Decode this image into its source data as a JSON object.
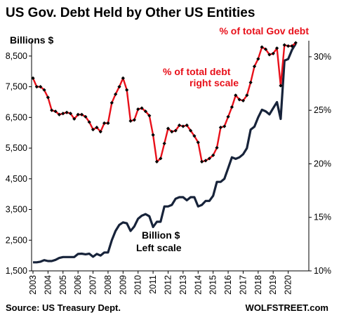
{
  "chart_data": {
    "type": "line",
    "title": "US Gov. Debt Held by Other US Entities",
    "left_axis": {
      "label": "Billions $",
      "ylim": [
        1500,
        9000
      ],
      "ticks": [
        1500,
        2500,
        3500,
        4500,
        5500,
        6500,
        7500,
        8500
      ],
      "tick_labels": [
        "1,500",
        "2,500",
        "3,500",
        "4,500",
        "5,500",
        "6,500",
        "7,500",
        "8,500"
      ]
    },
    "right_axis": {
      "label": "% of total Gov debt",
      "ylim": [
        10,
        31.5
      ],
      "ticks": [
        10,
        15,
        20,
        25,
        30
      ],
      "tick_labels": [
        "10%",
        "15%",
        "20%",
        "25%",
        "30%"
      ]
    },
    "x_axis": {
      "xlim": [
        2003.0,
        2021.0
      ],
      "tick_years": [
        2003,
        2004,
        2005,
        2006,
        2007,
        2008,
        2009,
        2010,
        2011,
        2012,
        2013,
        2014,
        2015,
        2016,
        2017,
        2018,
        2019,
        2020
      ],
      "tick_labels": [
        "2003",
        "2004",
        "2005",
        "2006",
        "2007",
        "2008",
        "2009",
        "2010",
        "2011",
        "2012",
        "2013",
        "2014",
        "2015",
        "2016",
        "2017",
        "2018",
        "2019",
        "2020"
      ]
    },
    "colors": {
      "billions": "#17233a",
      "percent": "#e8101a",
      "marker": "#000000"
    },
    "series": [
      {
        "name": "Billion $",
        "axis": "left",
        "points": [
          [
            2003.0,
            1780
          ],
          [
            2003.25,
            1780
          ],
          [
            2003.5,
            1800
          ],
          [
            2003.75,
            1850
          ],
          [
            2004.0,
            1820
          ],
          [
            2004.25,
            1820
          ],
          [
            2004.5,
            1860
          ],
          [
            2004.75,
            1920
          ],
          [
            2005.0,
            1950
          ],
          [
            2005.25,
            1950
          ],
          [
            2005.5,
            1950
          ],
          [
            2005.75,
            1950
          ],
          [
            2006.0,
            2050
          ],
          [
            2006.25,
            2060
          ],
          [
            2006.5,
            2040
          ],
          [
            2006.75,
            2060
          ],
          [
            2007.0,
            1960
          ],
          [
            2007.25,
            2050
          ],
          [
            2007.5,
            2000
          ],
          [
            2007.75,
            2100
          ],
          [
            2008.0,
            2100
          ],
          [
            2008.25,
            2500
          ],
          [
            2008.5,
            2800
          ],
          [
            2008.75,
            3000
          ],
          [
            2009.0,
            3080
          ],
          [
            2009.25,
            3050
          ],
          [
            2009.5,
            2800
          ],
          [
            2009.75,
            2950
          ],
          [
            2010.0,
            3200
          ],
          [
            2010.25,
            3300
          ],
          [
            2010.5,
            3350
          ],
          [
            2010.75,
            3280
          ],
          [
            2011.0,
            2930
          ],
          [
            2011.25,
            3100
          ],
          [
            2011.5,
            3100
          ],
          [
            2011.75,
            3600
          ],
          [
            2012.0,
            3600
          ],
          [
            2012.25,
            3650
          ],
          [
            2012.5,
            3850
          ],
          [
            2012.75,
            3900
          ],
          [
            2013.0,
            3900
          ],
          [
            2013.25,
            3800
          ],
          [
            2013.5,
            3900
          ],
          [
            2013.75,
            3900
          ],
          [
            2014.0,
            3600
          ],
          [
            2014.25,
            3650
          ],
          [
            2014.5,
            3780
          ],
          [
            2014.75,
            3780
          ],
          [
            2015.0,
            3950
          ],
          [
            2015.25,
            4400
          ],
          [
            2015.5,
            4400
          ],
          [
            2015.75,
            4500
          ],
          [
            2016.0,
            4850
          ],
          [
            2016.25,
            5200
          ],
          [
            2016.5,
            5150
          ],
          [
            2016.75,
            5200
          ],
          [
            2017.0,
            5300
          ],
          [
            2017.25,
            5500
          ],
          [
            2017.5,
            6100
          ],
          [
            2017.75,
            6200
          ],
          [
            2018.0,
            6500
          ],
          [
            2018.25,
            6750
          ],
          [
            2018.5,
            6700
          ],
          [
            2018.75,
            6600
          ],
          [
            2019.0,
            6800
          ],
          [
            2019.25,
            7000
          ],
          [
            2019.5,
            6450
          ],
          [
            2019.75,
            8350
          ],
          [
            2020.0,
            8400
          ],
          [
            2020.25,
            8700
          ],
          [
            2020.5,
            8900
          ]
        ]
      },
      {
        "name": "% of total Gov debt",
        "axis": "right",
        "points": [
          [
            2003.0,
            28.0
          ],
          [
            2003.25,
            27.2
          ],
          [
            2003.5,
            27.2
          ],
          [
            2003.75,
            26.9
          ],
          [
            2004.0,
            26.2
          ],
          [
            2004.25,
            25.0
          ],
          [
            2004.5,
            24.9
          ],
          [
            2004.75,
            24.6
          ],
          [
            2005.0,
            24.7
          ],
          [
            2005.25,
            24.8
          ],
          [
            2005.5,
            24.7
          ],
          [
            2005.75,
            24.2
          ],
          [
            2006.0,
            24.6
          ],
          [
            2006.25,
            24.6
          ],
          [
            2006.5,
            24.4
          ],
          [
            2006.75,
            23.9
          ],
          [
            2007.0,
            23.2
          ],
          [
            2007.25,
            23.4
          ],
          [
            2007.5,
            23.0
          ],
          [
            2007.75,
            23.8
          ],
          [
            2008.0,
            23.8
          ],
          [
            2008.25,
            25.7
          ],
          [
            2008.5,
            26.5
          ],
          [
            2008.75,
            27.2
          ],
          [
            2009.0,
            28.0
          ],
          [
            2009.25,
            26.9
          ],
          [
            2009.5,
            24.0
          ],
          [
            2009.75,
            24.1
          ],
          [
            2010.0,
            25.1
          ],
          [
            2010.25,
            25.2
          ],
          [
            2010.5,
            24.9
          ],
          [
            2010.75,
            24.5
          ],
          [
            2011.0,
            22.7
          ],
          [
            2011.25,
            20.2
          ],
          [
            2011.5,
            20.5
          ],
          [
            2011.75,
            21.9
          ],
          [
            2012.0,
            23.3
          ],
          [
            2012.25,
            23.0
          ],
          [
            2012.5,
            23.1
          ],
          [
            2012.75,
            23.6
          ],
          [
            2013.0,
            23.5
          ],
          [
            2013.25,
            23.6
          ],
          [
            2013.5,
            23.1
          ],
          [
            2013.75,
            22.6
          ],
          [
            2014.0,
            22.0
          ],
          [
            2014.25,
            20.2
          ],
          [
            2014.5,
            20.3
          ],
          [
            2014.75,
            20.5
          ],
          [
            2015.0,
            20.8
          ],
          [
            2015.25,
            21.5
          ],
          [
            2015.5,
            23.4
          ],
          [
            2015.75,
            23.5
          ],
          [
            2016.0,
            24.4
          ],
          [
            2016.25,
            25.3
          ],
          [
            2016.5,
            26.4
          ],
          [
            2016.75,
            26.0
          ],
          [
            2017.0,
            25.9
          ],
          [
            2017.25,
            26.4
          ],
          [
            2017.5,
            27.6
          ],
          [
            2017.75,
            29.1
          ],
          [
            2018.0,
            29.8
          ],
          [
            2018.25,
            30.9
          ],
          [
            2018.5,
            30.7
          ],
          [
            2018.75,
            30.2
          ],
          [
            2019.0,
            30.3
          ],
          [
            2019.25,
            30.8
          ],
          [
            2019.5,
            27.3
          ],
          [
            2019.75,
            31.1
          ],
          [
            2020.0,
            31.0
          ],
          [
            2020.25,
            31.0
          ],
          [
            2020.5,
            31.3
          ]
        ]
      }
    ],
    "annotations": [
      {
        "text": "% of total debt",
        "series": "% of total Gov debt"
      },
      {
        "text": "right scale",
        "series": "% of total Gov debt"
      },
      {
        "text": "Billion $",
        "series": "Billion $"
      },
      {
        "text": "Left scale",
        "series": "Billion $"
      }
    ],
    "source": "Source: US Treasury Dept.",
    "brand": "WOLFSTREET.com",
    "grid": false
  }
}
